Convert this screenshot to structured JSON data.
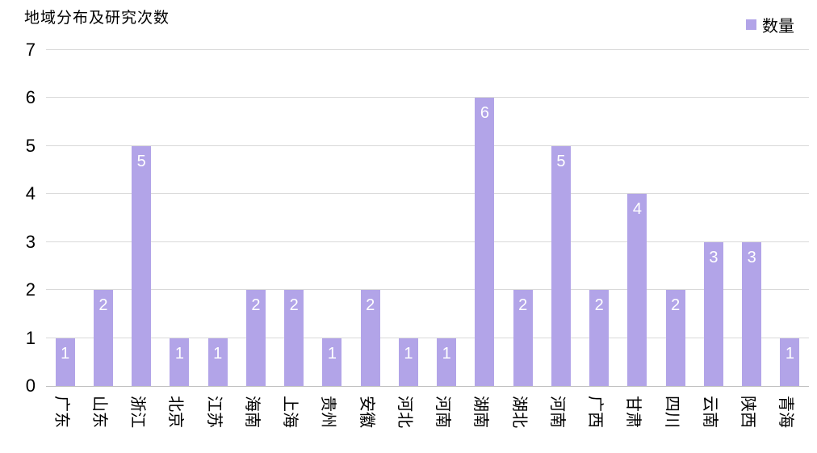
{
  "title": "地域分布及研究次数",
  "legend": {
    "label": "数量"
  },
  "chart_data": {
    "type": "bar",
    "title": "地域分布及研究次数",
    "categories": [
      "广东",
      "山东",
      "浙江",
      "北京",
      "江苏",
      "海南",
      "上海",
      "贵州",
      "安徽",
      "河北",
      "河南",
      "湖南",
      "湖北",
      "河南",
      "广西",
      "甘肃",
      "四川",
      "云南",
      "陕西",
      "青海"
    ],
    "values": [
      1,
      2,
      5,
      1,
      1,
      2,
      2,
      1,
      2,
      1,
      1,
      6,
      2,
      5,
      2,
      4,
      2,
      3,
      3,
      1
    ],
    "series_name": "数量",
    "xlabel": "",
    "ylabel": "",
    "ylim": [
      0,
      7
    ],
    "ytick_step": 1,
    "grid": true,
    "legend_position": "top-right",
    "bar_color": "#b2a4e8",
    "data_label_color": "#ffffff",
    "gridline_color": "#d9d9d9"
  }
}
